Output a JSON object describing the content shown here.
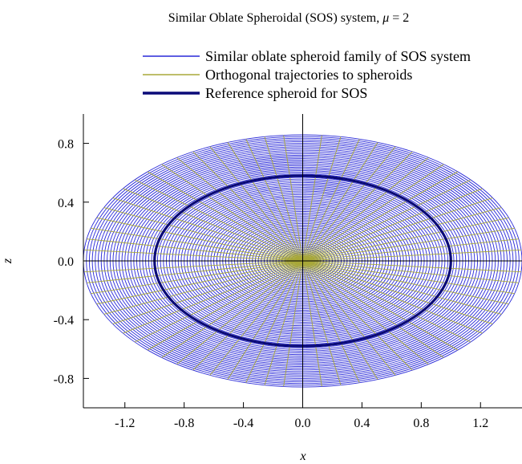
{
  "chart_data": {
    "type": "line",
    "title_prefix": "Similar Oblate Spheroidal (SOS) system,",
    "title_param_symbol": "μ",
    "title_param_value": "= 2",
    "xlabel": "x",
    "ylabel": "z",
    "xlim": [
      -1.48,
      1.48
    ],
    "ylim": [
      -1.0,
      1.0
    ],
    "x_ticks": [
      -1.2,
      -0.8,
      -0.4,
      0.0,
      0.4,
      0.8,
      1.2
    ],
    "x_tick_labels": [
      "-1.2",
      "-0.8",
      "-0.4",
      "0.0",
      "0.4",
      "0.8",
      "1.2"
    ],
    "y_ticks": [
      -0.8,
      -0.4,
      0.0,
      0.4,
      0.8
    ],
    "y_tick_labels": [
      "-0.8",
      "-0.4",
      "0.0",
      "0.4",
      "0.8"
    ],
    "grid": false,
    "legend_position": "top",
    "mu": 2,
    "series": [
      {
        "name": "Similar oblate spheroid family of SOS system",
        "kind": "spheroid-family",
        "color": "#2828d8",
        "semi_axis_x": [
          0.02,
          0.04,
          0.06,
          0.08,
          0.1,
          0.12,
          0.14,
          0.16,
          0.18,
          0.2,
          0.22,
          0.24,
          0.26,
          0.28,
          0.3,
          0.32,
          0.34,
          0.36,
          0.38,
          0.4,
          0.42,
          0.44,
          0.46,
          0.48,
          0.5,
          0.52,
          0.54,
          0.56,
          0.58,
          0.6,
          0.62,
          0.64,
          0.66,
          0.68,
          0.7,
          0.72,
          0.74,
          0.76,
          0.78,
          0.8,
          0.82,
          0.84,
          0.86,
          0.88,
          0.9,
          0.92,
          0.94,
          0.96,
          0.98,
          1.0,
          1.02,
          1.04,
          1.06,
          1.08,
          1.1,
          1.12,
          1.14,
          1.16,
          1.18,
          1.2,
          1.22,
          1.24,
          1.26,
          1.28,
          1.3,
          1.32,
          1.34,
          1.36,
          1.38,
          1.4,
          1.42,
          1.44,
          1.46,
          1.48
        ],
        "axis_ratio_z_over_x": 0.58
      },
      {
        "name": "Orthogonal trajectories to spheroids",
        "kind": "orthogonal-trajectories",
        "color": "#a8a838",
        "trajectory_count": 36,
        "max_radius_x": 1.48
      },
      {
        "name": "Reference spheroid for SOS",
        "kind": "reference-spheroid",
        "color": "#0a0a78",
        "semi_axis_x": 1.0,
        "semi_axis_z": 0.58
      }
    ]
  }
}
